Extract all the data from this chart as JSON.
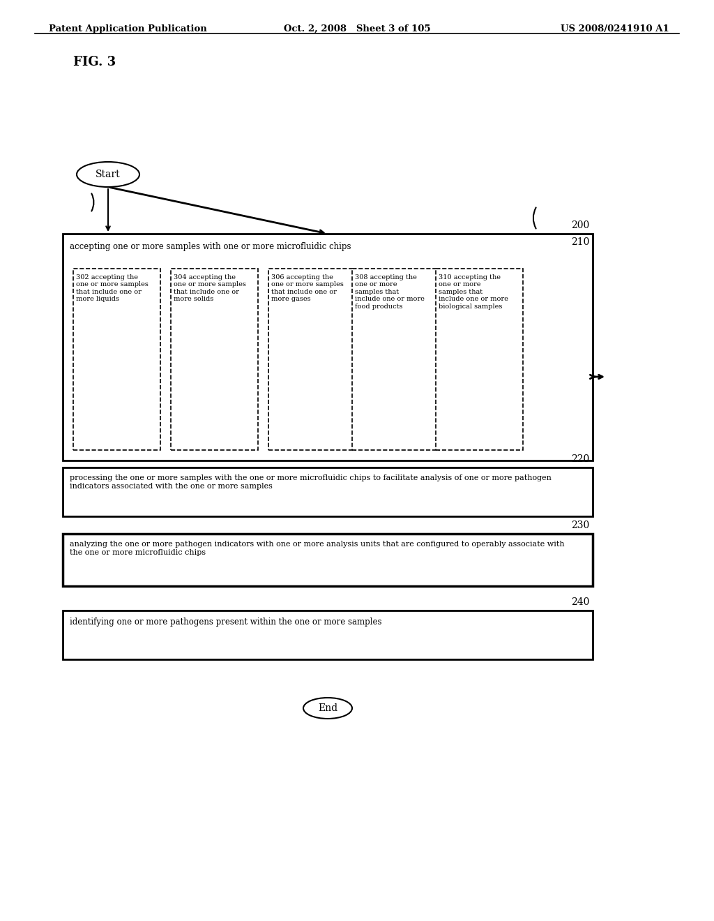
{
  "bg_color": "#ffffff",
  "header_left": "Patent Application Publication",
  "header_mid": "Oct. 2, 2008   Sheet 3 of 105",
  "header_right": "US 2008/0241910 A1",
  "fig_label": "FIG. 3",
  "start_label": "Start",
  "end_label": "End",
  "node200_label": "200",
  "node210_label": "210",
  "node220_label": "220",
  "node230_label": "230",
  "node240_label": "240",
  "box200_text": "accepting one or more samples with one or more microfluidic chips",
  "box210_text": "accepting one or more samples with one or more microfluidic chips",
  "box220_text": "processing the one or more samples with the one or more microfluidic chips to facilitate analysis of one or more pathogen\nindicators associated with the one or more samples",
  "box230_text": "analyzing the one or more pathogen indicators with one or more analysis units that are configured to operably associate with\nthe one or more microfluidic chips",
  "box240_text": "identifying one or more pathogens present within the one or more samples",
  "sub302_label": "302",
  "sub302_text": "accepting the\none or more samples\nthat include one or\nmore liquids",
  "sub304_label": "304",
  "sub304_text": "accepting the\none or more samples\nthat include one or\nmore solids",
  "sub306_label": "306",
  "sub306_text": "accepting the\none or more samples\nthat include one or\nmore gases",
  "sub308_label": "308",
  "sub308_text": "accepting the\none or more\nsamples that\ninclude one or more\nfood products",
  "sub310_label": "310",
  "sub310_text": "accepting the\none or more\nsamples that\ninclude one or more\nbiological samples"
}
